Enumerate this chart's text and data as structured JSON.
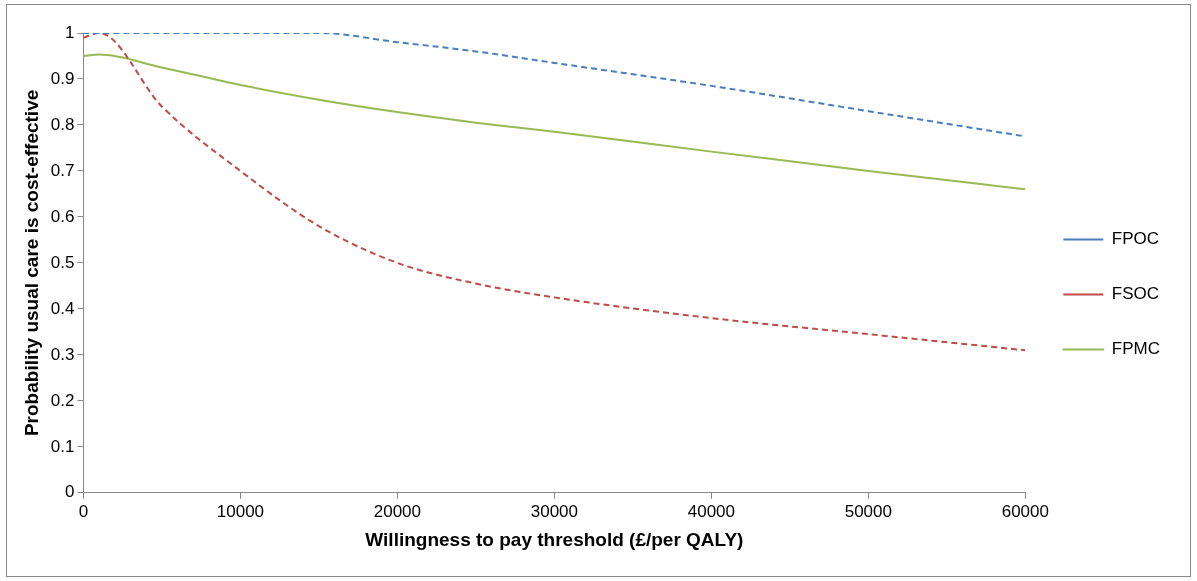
{
  "chart_data": {
    "type": "line",
    "xlabel": "Willingness to pay threshold (£/per QALY)",
    "ylabel": "Probability usual care is cost-effective",
    "x": [
      0,
      1000,
      5000,
      10000,
      15000,
      20000,
      25000,
      30000,
      40000,
      50000,
      60000
    ],
    "series": [
      {
        "name": "FPOC",
        "color": "#4a7ebb",
        "line_style": "dashed",
        "values": [
          1.0,
          1.0,
          1.0,
          1.0,
          1.0,
          0.98,
          0.96,
          0.935,
          0.885,
          0.83,
          0.775
        ]
      },
      {
        "name": "FSOC",
        "color": "#be4b48",
        "line_style": "dashed",
        "values": [
          0.99,
          1.0,
          0.84,
          0.7,
          0.58,
          0.5,
          0.455,
          0.425,
          0.38,
          0.345,
          0.31
        ]
      },
      {
        "name": "FPMC",
        "color": "#98b954",
        "line_style": "solid",
        "values": [
          0.95,
          0.953,
          0.925,
          0.887,
          0.855,
          0.828,
          0.805,
          0.785,
          0.742,
          0.7,
          0.66
        ]
      }
    ],
    "xlim": [
      0,
      60000
    ],
    "xticks": [
      0,
      10000,
      20000,
      30000,
      40000,
      50000,
      60000
    ],
    "ylim": [
      0,
      1
    ],
    "yticks": [
      0,
      0.1,
      0.2,
      0.3,
      0.4,
      0.5,
      0.6,
      0.7,
      0.8,
      0.9,
      1
    ],
    "grid": false,
    "legend": "right",
    "marker": "none"
  }
}
